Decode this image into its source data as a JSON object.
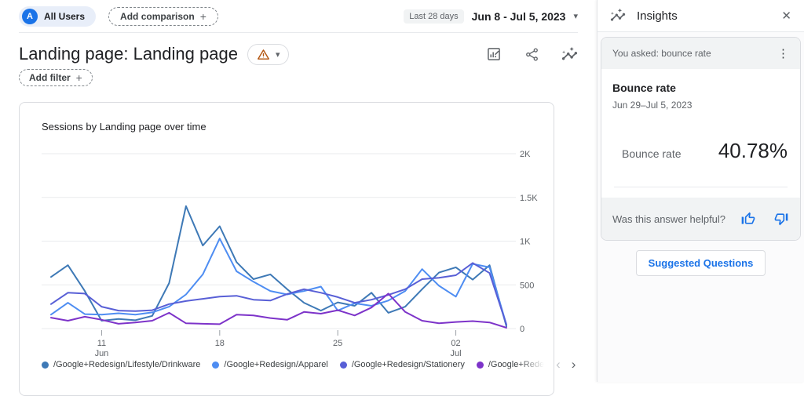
{
  "topbar": {
    "avatar_letter": "A",
    "all_users_label": "All Users",
    "add_comparison_label": "Add comparison",
    "date_badge": "Last 28 days",
    "date_range": "Jun 8 - Jul 5, 2023"
  },
  "header": {
    "page_title": "Landing page: Landing page",
    "add_filter_label": "Add filter"
  },
  "chart_card": {
    "title": "Sessions by Landing page over time"
  },
  "chart_data": {
    "type": "line",
    "title": "Sessions by Landing page over time",
    "x_unit": "day",
    "x_range": [
      "Jun 8, 2023",
      "Jul 5, 2023"
    ],
    "x_labels": [
      "Jun 8",
      "Jun 9",
      "Jun 10",
      "Jun 11",
      "Jun 12",
      "Jun 13",
      "Jun 14",
      "Jun 15",
      "Jun 16",
      "Jun 17",
      "Jun 18",
      "Jun 19",
      "Jun 20",
      "Jun 21",
      "Jun 22",
      "Jun 23",
      "Jun 24",
      "Jun 25",
      "Jun 26",
      "Jun 27",
      "Jun 28",
      "Jun 29",
      "Jun 30",
      "Jul 1",
      "Jul 2",
      "Jul 3",
      "Jul 4",
      "Jul 5"
    ],
    "ylim": [
      0,
      2000
    ],
    "grid": true,
    "legend_position": "bottom",
    "yticks": [
      {
        "label": "0",
        "value": 0
      },
      {
        "label": "500",
        "value": 500
      },
      {
        "label": "1K",
        "value": 1000
      },
      {
        "label": "1.5K",
        "value": 1500
      },
      {
        "label": "2K",
        "value": 2000
      }
    ],
    "xticks": [
      {
        "day": "11",
        "month": "Jun",
        "day_index": 3
      },
      {
        "day": "18",
        "month": "",
        "day_index": 10
      },
      {
        "day": "25",
        "month": "",
        "day_index": 17
      },
      {
        "day": "02",
        "month": "Jul",
        "day_index": 24
      }
    ],
    "series": [
      {
        "name": "/Google+Redesign/Lifestyle/Drinkware",
        "display_label": "/Google+Redesign/Lifestyle/Drinkware",
        "color": "#3e79b6",
        "truncated": false,
        "values": [
          590,
          725,
          430,
          90,
          110,
          95,
          145,
          520,
          1400,
          950,
          1170,
          760,
          565,
          620,
          450,
          295,
          205,
          300,
          260,
          410,
          180,
          250,
          450,
          640,
          700,
          560,
          725,
          25
        ]
      },
      {
        "name": "/Google+Redesign/Apparel",
        "display_label": "/Google+Redesign/Apparel",
        "color": "#4e8df2",
        "truncated": false,
        "values": [
          160,
          295,
          165,
          160,
          175,
          160,
          185,
          250,
          390,
          620,
          1030,
          655,
          535,
          430,
          390,
          430,
          480,
          205,
          290,
          260,
          320,
          430,
          680,
          490,
          365,
          740,
          700,
          45
        ]
      },
      {
        "name": "/Google+Redesign/Stationery",
        "display_label": "/Google+Redesign/Stationery",
        "color": "#585fd6",
        "truncated": false,
        "values": [
          280,
          410,
          400,
          250,
          205,
          200,
          210,
          280,
          315,
          340,
          365,
          375,
          330,
          320,
          395,
          450,
          410,
          360,
          295,
          330,
          385,
          450,
          565,
          580,
          610,
          750,
          635,
          45
        ]
      },
      {
        "name": "/Google+Rede",
        "display_label": "/Google+Rede",
        "color": "#7d33c9",
        "truncated": true,
        "values": [
          125,
          90,
          135,
          100,
          55,
          70,
          90,
          180,
          60,
          55,
          50,
          160,
          150,
          120,
          100,
          190,
          170,
          210,
          150,
          240,
          400,
          190,
          90,
          60,
          75,
          85,
          70,
          10
        ]
      }
    ]
  },
  "legend_nav": {
    "prev": "‹",
    "next": "›"
  },
  "insights": {
    "title": "Insights",
    "card": {
      "header": "You asked: bounce rate",
      "metric_title": "Bounce rate",
      "date_range": "Jun 29–Jul 5, 2023",
      "metric_label": "Bounce rate",
      "metric_value": "40.78%",
      "feedback_prompt": "Was this answer helpful?"
    },
    "suggested_questions_label": "Suggested Questions"
  },
  "icons": {
    "plus": "+",
    "caret_down": "▾",
    "close": "✕",
    "kebab": "⋮"
  },
  "colors": {
    "accent_blue": "#1a73e8",
    "warning_icon": "#b3540e",
    "text_primary": "#202124",
    "text_secondary": "#5f6368",
    "grid_line": "#e9ebee"
  }
}
